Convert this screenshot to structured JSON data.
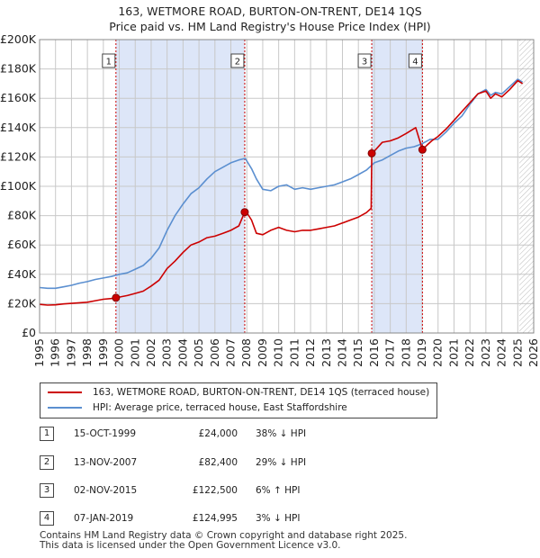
{
  "title_line1": "163, WETMORE ROAD, BURTON-ON-TRENT, DE14 1QS",
  "title_line2": "Price paid vs. HM Land Registry's House Price Index (HPI)",
  "colors": {
    "price": "#cc0000",
    "hpi": "#5b8fd0",
    "shade": "#dde6f8",
    "grid": "#c8c8c8"
  },
  "legend": {
    "price_label": "163, WETMORE ROAD, BURTON-ON-TRENT, DE14 1QS (terraced house)",
    "hpi_label": "HPI: Average price, terraced house, East Staffordshire"
  },
  "sales": [
    {
      "num": "1",
      "date": "15-OCT-1999",
      "price": "£24,000",
      "hpi": "38% ↓ HPI"
    },
    {
      "num": "2",
      "date": "13-NOV-2007",
      "price": "£82,400",
      "hpi": "29% ↓ HPI"
    },
    {
      "num": "3",
      "date": "02-NOV-2015",
      "price": "£122,500",
      "hpi": "6% ↑ HPI"
    },
    {
      "num": "4",
      "date": "07-JAN-2019",
      "price": "£124,995",
      "hpi": "3% ↓ HPI"
    }
  ],
  "footer": {
    "line1": "Contains HM Land Registry data © Crown copyright and database right 2025.",
    "line2": "This data is licensed under the Open Government Licence v3.0."
  },
  "chart_data": {
    "type": "line",
    "title": "163, WETMORE ROAD, BURTON-ON-TRENT, DE14 1QS — Price paid vs. HM Land Registry's House Price Index (HPI)",
    "xlabel": "",
    "ylabel": "",
    "xlim": [
      1995,
      2026
    ],
    "ylim": [
      0,
      200000
    ],
    "x_ticks": [
      1995,
      1996,
      1997,
      1998,
      1999,
      2000,
      2001,
      2002,
      2003,
      2004,
      2005,
      2006,
      2007,
      2008,
      2009,
      2010,
      2011,
      2012,
      2013,
      2014,
      2015,
      2016,
      2017,
      2018,
      2019,
      2020,
      2021,
      2022,
      2023,
      2024,
      2025,
      2026
    ],
    "y_ticks": [
      0,
      20000,
      40000,
      60000,
      80000,
      100000,
      120000,
      140000,
      160000,
      180000,
      200000
    ],
    "y_tick_labels": [
      "£0",
      "£20K",
      "£40K",
      "£60K",
      "£80K",
      "£100K",
      "£120K",
      "£140K",
      "£160K",
      "£180K",
      "£200K"
    ],
    "shaded_periods": [
      [
        1999.79,
        2007.87
      ],
      [
        2015.84,
        2019.02
      ]
    ],
    "forecast_start": 2025.1,
    "series": [
      {
        "name": "163, WETMORE ROAD, BURTON-ON-TRENT, DE14 1QS (terraced house)",
        "x": [
          1995,
          1995.5,
          1996,
          1996.5,
          1997,
          1997.5,
          1998,
          1998.5,
          1999,
          1999.5,
          1999.79,
          2000,
          2000.5,
          2001,
          2001.5,
          2002,
          2002.5,
          2003,
          2003.5,
          2004,
          2004.5,
          2005,
          2005.5,
          2006,
          2006.5,
          2007,
          2007.5,
          2007.87,
          2008,
          2008.3,
          2008.6,
          2009,
          2009.5,
          2010,
          2010.5,
          2011,
          2011.5,
          2012,
          2012.5,
          2013,
          2013.5,
          2014,
          2014.5,
          2015,
          2015.5,
          2015.8,
          2015.84,
          2016,
          2016.5,
          2017,
          2017.5,
          2018,
          2018.3,
          2018.6,
          2019.02,
          2019.3,
          2019.6,
          2020,
          2020.5,
          2021,
          2021.5,
          2022,
          2022.5,
          2023,
          2023.3,
          2023.6,
          2024,
          2024.5,
          2025,
          2025.3
        ],
        "values": [
          19500,
          19000,
          19200,
          19800,
          20200,
          20600,
          21000,
          22000,
          23000,
          23500,
          24000,
          24500,
          25500,
          27000,
          28500,
          32000,
          36000,
          44000,
          49000,
          55000,
          60000,
          62000,
          65000,
          66000,
          68000,
          70000,
          73000,
          82400,
          82000,
          77000,
          68000,
          67000,
          70000,
          72000,
          70000,
          69000,
          70000,
          70000,
          71000,
          72000,
          73000,
          75000,
          77000,
          79000,
          82000,
          85000,
          122500,
          124000,
          130000,
          131000,
          133000,
          136000,
          138000,
          140000,
          124995,
          128000,
          131000,
          134000,
          139000,
          145000,
          151000,
          157000,
          163000,
          165000,
          160000,
          163000,
          161000,
          166000,
          172000,
          170000
        ]
      },
      {
        "name": "HPI: Average price, terraced house, East Staffordshire",
        "x": [
          1995,
          1995.5,
          1996,
          1996.5,
          1997,
          1997.5,
          1998,
          1998.5,
          1999,
          1999.5,
          2000,
          2000.5,
          2001,
          2001.5,
          2002,
          2002.5,
          2003,
          2003.5,
          2004,
          2004.5,
          2005,
          2005.5,
          2006,
          2006.5,
          2007,
          2007.5,
          2007.9,
          2008.3,
          2008.6,
          2009,
          2009.5,
          2010,
          2010.5,
          2011,
          2011.5,
          2012,
          2012.5,
          2013,
          2013.5,
          2014,
          2014.5,
          2015,
          2015.5,
          2015.8,
          2016,
          2016.5,
          2017,
          2017.5,
          2018,
          2018.5,
          2019,
          2019.5,
          2020,
          2020.5,
          2021,
          2021.5,
          2022,
          2022.5,
          2023,
          2023.3,
          2023.6,
          2024,
          2024.5,
          2025,
          2025.3
        ],
        "values": [
          31000,
          30500,
          30500,
          31500,
          32500,
          34000,
          35000,
          36500,
          37500,
          38500,
          40000,
          41000,
          43500,
          46000,
          51000,
          58000,
          70000,
          80000,
          88000,
          95000,
          99000,
          105000,
          110000,
          113000,
          116000,
          118000,
          119000,
          112000,
          105000,
          98000,
          97000,
          100000,
          101000,
          98000,
          99000,
          98000,
          99000,
          100000,
          101000,
          103000,
          105000,
          108000,
          111000,
          114000,
          116000,
          118000,
          121000,
          124000,
          126000,
          127000,
          129000,
          132000,
          132000,
          137000,
          143000,
          148000,
          156000,
          163000,
          166000,
          162000,
          164000,
          163000,
          168000,
          173000,
          171000
        ]
      }
    ],
    "sale_markers": [
      {
        "label": "1",
        "x": 1999.79,
        "y": 24000
      },
      {
        "label": "2",
        "x": 2007.87,
        "y": 82400
      },
      {
        "label": "3",
        "x": 2015.84,
        "y": 122500
      },
      {
        "label": "4",
        "x": 2019.02,
        "y": 124995
      }
    ]
  }
}
